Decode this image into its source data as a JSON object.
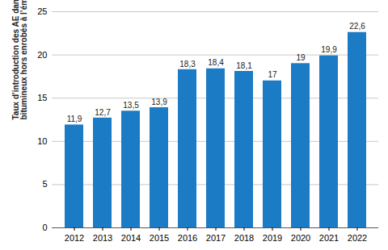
{
  "chart_data": {
    "type": "bar",
    "ylabel": "Taux d’introduction des AE dans les enrobés bitumineux hors enrobés à l’émulsion (%)",
    "categories": [
      "2012",
      "2013",
      "2014",
      "2015",
      "2016",
      "2017",
      "2018",
      "2019",
      "2020",
      "2021",
      "2022"
    ],
    "values": [
      11.9,
      12.7,
      13.5,
      13.9,
      18.3,
      18.4,
      18.1,
      17,
      19,
      19.9,
      22.6
    ],
    "value_labels": [
      "11,9",
      "12,7",
      "13,5",
      "13,9",
      "18,3",
      "18,4",
      "18,1",
      "17",
      "19",
      "19,9",
      "22,6"
    ],
    "data_labels": true,
    "color": "#1b7bc4",
    "ylim": [
      0,
      25
    ],
    "yticks": [
      0,
      5,
      10,
      15,
      20,
      25
    ],
    "grid": true
  }
}
